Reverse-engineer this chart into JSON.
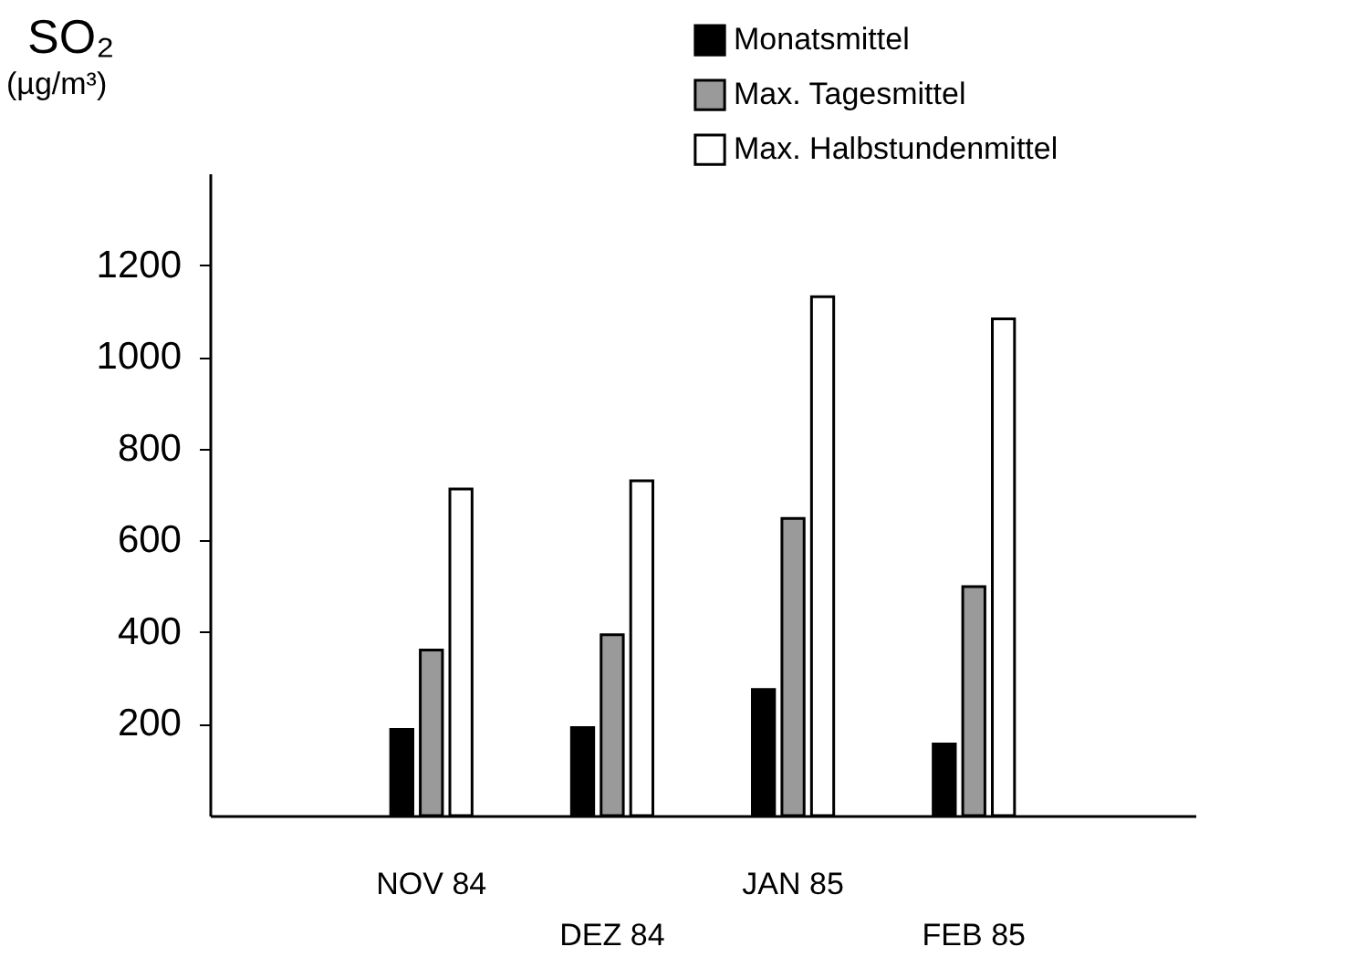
{
  "chart_data": {
    "type": "bar",
    "title": "SO₂",
    "ylabel": "(µg/m³)",
    "categories": [
      "NOV 84",
      "DEZ 84",
      "JAN 85",
      "FEB 85"
    ],
    "series": [
      {
        "name": "Monatsmittel",
        "color": "#000000",
        "values": [
          188,
          192,
          275,
          156
        ]
      },
      {
        "name": "Max. Tagesmittel",
        "color": "#9a9a9a",
        "values": [
          361,
          394,
          648,
          499
        ]
      },
      {
        "name": "Max. Halbstundenmittel",
        "color": "#ffffff",
        "values": [
          712,
          730,
          1131,
          1083
        ]
      }
    ],
    "ylim": [
      0,
      1400
    ],
    "yticks": [
      200,
      400,
      600,
      800,
      1000,
      1200
    ],
    "grid": false,
    "legend": "top right"
  }
}
